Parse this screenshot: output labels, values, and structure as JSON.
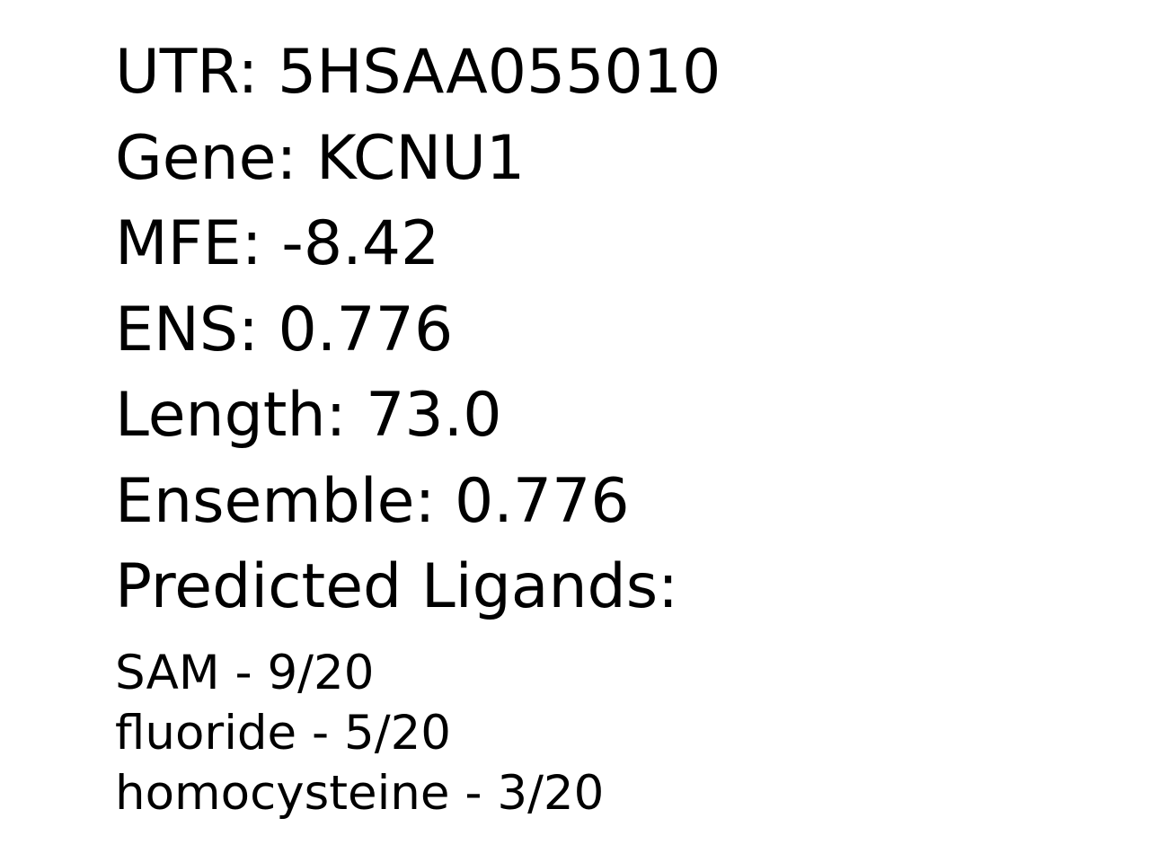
{
  "fields": [
    {
      "label": "UTR",
      "value": "5HSAA055010"
    },
    {
      "label": "Gene",
      "value": "KCNU1"
    },
    {
      "label": "MFE",
      "value": "-8.42"
    },
    {
      "label": "ENS",
      "value": "0.776"
    },
    {
      "label": "Length",
      "value": "73.0"
    },
    {
      "label": "Ensemble",
      "value": "0.776"
    }
  ],
  "ligands_heading": "Predicted Ligands:",
  "ligands": [
    {
      "name": "SAM",
      "score": "9/20"
    },
    {
      "name": "fluoride",
      "score": "5/20"
    },
    {
      "name": "homocysteine",
      "score": "3/20"
    }
  ]
}
